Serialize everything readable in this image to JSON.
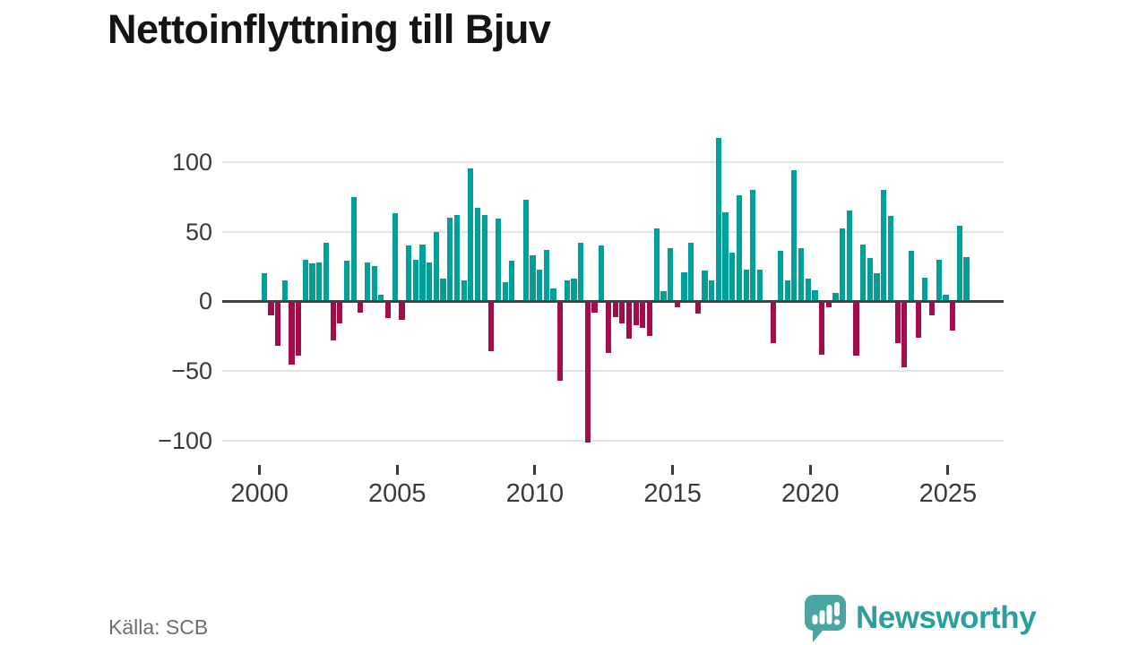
{
  "title": "Nettoinflyttning till Bjuv",
  "source": "Källa: SCB",
  "brand": {
    "name": "Newsworthy"
  },
  "chart_data": {
    "type": "bar",
    "title": "Nettoinflyttning till Bjuv",
    "frequency": "quarterly",
    "start_year": 2000,
    "start_quarter": 1,
    "end_year": 2025,
    "end_quarter": 3,
    "values": [
      20,
      -10,
      -32,
      15,
      -45,
      -39,
      30,
      27,
      28,
      42,
      -28,
      -16,
      29,
      75,
      -8,
      28,
      25,
      5,
      -12,
      63,
      -13,
      40,
      30,
      41,
      28,
      50,
      16,
      60,
      62,
      15,
      95,
      67,
      62,
      -36,
      59,
      14,
      29,
      0,
      73,
      33,
      23,
      37,
      9,
      -57,
      15,
      16,
      42,
      -101,
      -8,
      40,
      -37,
      -11,
      -16,
      -27,
      -17,
      -19,
      -25,
      52,
      7,
      38,
      -4,
      21,
      42,
      -9,
      22,
      15,
      117,
      64,
      35,
      76,
      23,
      80,
      23,
      0,
      -30,
      36,
      15,
      94,
      38,
      16,
      8,
      -38,
      -4,
      6,
      52,
      65,
      -39,
      41,
      31,
      20,
      80,
      61,
      -30,
      -47,
      36,
      -26,
      17,
      -10,
      30,
      5,
      -21,
      54,
      32
    ],
    "y_ticks": [
      100,
      50,
      0,
      -50,
      -100
    ],
    "y_tick_labels": [
      "100",
      "50",
      "0",
      "−50",
      "−100"
    ],
    "x_tick_labels": [
      "2000",
      "2005",
      "2010",
      "2015",
      "2020",
      "2025"
    ],
    "ylim": [
      -110,
      125
    ],
    "grid": true,
    "legend": "none",
    "positive_color": "#00a09a",
    "negative_color": "#a30d4b",
    "axis_text_color": "#3a3a3a",
    "grid_color": "#e4e4e4",
    "zero_line_color": "#3f4245"
  }
}
